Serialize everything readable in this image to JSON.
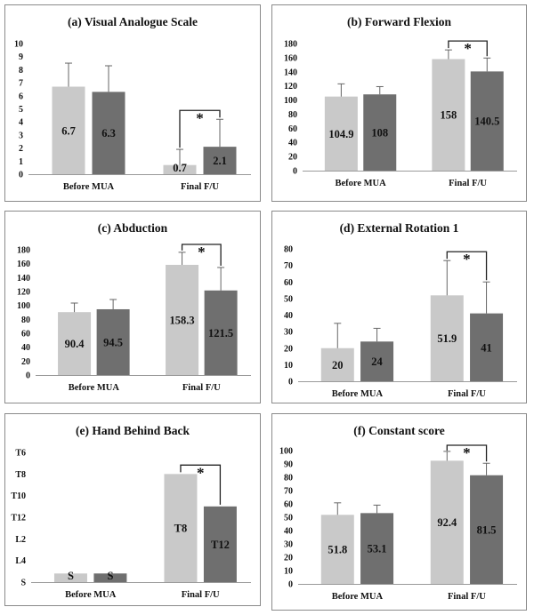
{
  "colors": {
    "before": "#c9c9c9",
    "final": "#6f6f6f"
  },
  "chart_data": [
    {
      "id": "a",
      "type": "bar",
      "title": "(a) Visual Analogue Scale",
      "categories": [
        "Before MUA",
        "Final F/U"
      ],
      "ylim": [
        0,
        10
      ],
      "yticks": [
        0,
        1,
        2,
        3,
        4,
        5,
        6,
        7,
        8,
        9,
        10
      ],
      "series": [
        {
          "values": [
            6.7,
            0.7
          ],
          "errors": [
            1.8,
            1.2
          ],
          "labels": [
            "6.7",
            "0.7"
          ]
        },
        {
          "values": [
            6.3,
            2.1
          ],
          "errors": [
            2.0,
            2.1
          ],
          "labels": [
            "6.3",
            "2.1"
          ]
        }
      ],
      "significance": [
        {
          "category": 1,
          "label": "*"
        }
      ]
    },
    {
      "id": "b",
      "type": "bar",
      "title": "(b) Forward Flexion",
      "categories": [
        "Before MUA",
        "Final F/U"
      ],
      "ylim": [
        0,
        180
      ],
      "yticks": [
        0,
        20,
        40,
        60,
        80,
        100,
        120,
        140,
        160,
        180
      ],
      "series": [
        {
          "values": [
            104.9,
            158
          ],
          "errors": [
            18,
            13
          ],
          "labels": [
            "104.9",
            "158"
          ]
        },
        {
          "values": [
            108,
            140.5
          ],
          "errors": [
            11,
            19
          ],
          "labels": [
            "108",
            "140.5"
          ]
        }
      ],
      "significance": [
        {
          "category": 1,
          "label": "*"
        }
      ]
    },
    {
      "id": "c",
      "type": "bar",
      "title": "(c) Abduction",
      "categories": [
        "Before MUA",
        "Final F/U"
      ],
      "ylim": [
        0,
        180
      ],
      "yticks": [
        0,
        20,
        40,
        60,
        80,
        100,
        120,
        140,
        160,
        180
      ],
      "series": [
        {
          "values": [
            90.4,
            158.3
          ],
          "errors": [
            13,
            18
          ],
          "labels": [
            "90.4",
            "158.3"
          ]
        },
        {
          "values": [
            94.5,
            121.5
          ],
          "errors": [
            14,
            33
          ],
          "labels": [
            "94.5",
            "121.5"
          ]
        }
      ],
      "significance": [
        {
          "category": 1,
          "label": "*"
        }
      ]
    },
    {
      "id": "d",
      "type": "bar",
      "title": "(d) External Rotation 1",
      "categories": [
        "Before MUA",
        "Final F/U"
      ],
      "ylim": [
        0,
        80
      ],
      "yticks": [
        0,
        10,
        20,
        30,
        40,
        50,
        60,
        70,
        80
      ],
      "series": [
        {
          "values": [
            20,
            51.9
          ],
          "errors": [
            15,
            21
          ],
          "labels": [
            "20",
            "51.9"
          ]
        },
        {
          "values": [
            24,
            41
          ],
          "errors": [
            8,
            19
          ],
          "labels": [
            "24",
            "41"
          ]
        }
      ],
      "significance": [
        {
          "category": 1,
          "label": "*"
        }
      ]
    },
    {
      "id": "e",
      "type": "bar",
      "title": "(e) Hand Behind Back",
      "categories": [
        "Before MUA",
        "Final F/U"
      ],
      "ylim": [
        0,
        6
      ],
      "yticks": [
        0,
        1,
        2,
        3,
        4,
        5,
        6
      ],
      "ytick_labels": [
        "S",
        "L4",
        "L2",
        "T12",
        "T10",
        "T8",
        "T6"
      ],
      "series": [
        {
          "values": [
            0.4,
            5.0
          ],
          "labels": [
            "S",
            "T8"
          ]
        },
        {
          "values": [
            0.4,
            3.5
          ],
          "labels": [
            "S",
            "T12"
          ]
        }
      ],
      "significance": [
        {
          "category": 1,
          "label": "*"
        }
      ]
    },
    {
      "id": "f",
      "type": "bar",
      "title": "(f) Constant score",
      "categories": [
        "Before MUA",
        "Final F/U"
      ],
      "ylim": [
        0,
        100
      ],
      "yticks": [
        0,
        10,
        20,
        30,
        40,
        50,
        60,
        70,
        80,
        90,
        100
      ],
      "series": [
        {
          "values": [
            51.8,
            92.4
          ],
          "errors": [
            9,
            7
          ],
          "labels": [
            "51.8",
            "92.4"
          ]
        },
        {
          "values": [
            53.1,
            81.5
          ],
          "errors": [
            6,
            9
          ],
          "labels": [
            "53.1",
            "81.5"
          ]
        }
      ],
      "significance": [
        {
          "category": 1,
          "label": "*"
        }
      ]
    }
  ]
}
